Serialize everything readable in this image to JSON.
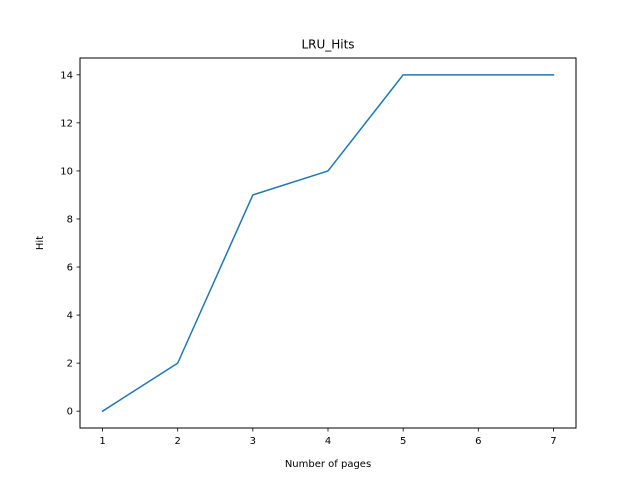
{
  "chart_data": {
    "type": "line",
    "title": "LRU_Hits",
    "xlabel": "Number of pages",
    "ylabel": "Hit",
    "xlim": [
      0.7,
      7.3
    ],
    "ylim": [
      -0.7,
      14.7
    ],
    "xticks": [
      1,
      2,
      3,
      4,
      5,
      6,
      7
    ],
    "yticks": [
      0,
      2,
      4,
      6,
      8,
      10,
      12,
      14
    ],
    "grid": false,
    "series": [
      {
        "x": [
          1,
          2,
          3,
          4,
          5,
          6,
          7
        ],
        "values": [
          0,
          2,
          9,
          10,
          14,
          14,
          14
        ],
        "color": "#1f77b4"
      }
    ]
  }
}
